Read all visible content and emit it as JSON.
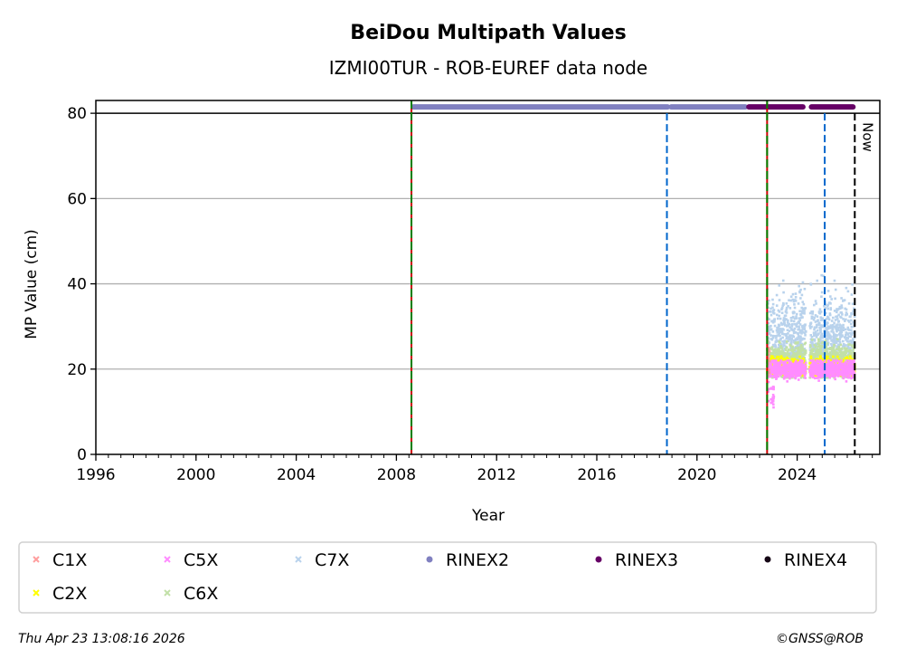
{
  "chart_data": {
    "type": "scatter",
    "title": "BeiDou Multipath Values",
    "subtitle": "IZMI00TUR - ROB-EUREF data node",
    "xlabel": "Year",
    "ylabel": "MP Value (cm)",
    "xlim": [
      1996.0,
      2027.3
    ],
    "ylim": [
      0,
      83
    ],
    "xticks": [
      1996,
      2000,
      2004,
      2008,
      2012,
      2016,
      2020,
      2024
    ],
    "yticks": [
      0,
      20,
      40,
      60,
      80
    ],
    "grid": "horizontal",
    "colors": {
      "C1X": "#ff9e9e",
      "C2X": "#ffff00",
      "C5X": "#ff8cff",
      "C6X": "#c2e0a8",
      "C7X": "#b8d2ec",
      "RINEX2": "#8080c0",
      "RINEX3": "#660066",
      "RINEX4": "#150515",
      "equipment_change": "#0066cc",
      "receiver_change_a": "#cc0000",
      "receiver_change_b": "#008000",
      "now": "#000000"
    },
    "vertical_lines": [
      {
        "type": "receiver",
        "x": 2008.6
      },
      {
        "type": "antenna",
        "x": 2018.8
      },
      {
        "type": "receiver",
        "x": 2022.8
      },
      {
        "type": "antenna",
        "x": 2025.1
      },
      {
        "type": "now",
        "x": 2026.3,
        "label": "Now"
      }
    ],
    "rinex_bars": [
      {
        "name": "RINEX2",
        "y": 81.5,
        "ranges": [
          [
            2008.6,
            2018.9
          ],
          [
            2018.9,
            2022.0
          ]
        ]
      },
      {
        "name": "RINEX3",
        "y": 81.5,
        "ranges": [
          [
            2022.0,
            2024.3
          ],
          [
            2024.5,
            2026.3
          ]
        ]
      }
    ],
    "series": [
      {
        "name": "C7X",
        "periods": [
          [
            2022.8,
            2024.35
          ],
          [
            2024.5,
            2026.3
          ]
        ],
        "center": 27,
        "spread": 5,
        "min": 20,
        "max": 42
      },
      {
        "name": "C6X",
        "periods": [
          [
            2022.8,
            2024.35
          ],
          [
            2024.5,
            2026.3
          ]
        ],
        "center": 22,
        "spread": 2,
        "min": 18,
        "max": 27
      },
      {
        "name": "C2X",
        "periods": [
          [
            2022.8,
            2024.35
          ],
          [
            2024.5,
            2026.3
          ]
        ],
        "center": 20.5,
        "spread": 1,
        "min": 18.5,
        "max": 23
      },
      {
        "name": "C5X",
        "periods": [
          [
            2022.8,
            2024.35
          ],
          [
            2024.5,
            2026.3
          ]
        ],
        "center": 20,
        "spread": 1,
        "min": 11,
        "max": 22
      },
      {
        "name": "C1X",
        "periods": [
          [
            2022.8,
            2022.9
          ]
        ],
        "center": 22,
        "spread": 2,
        "min": 16,
        "max": 26
      }
    ],
    "legend": {
      "placement": "bottom",
      "items": [
        {
          "label": "C1X",
          "marker": "x"
        },
        {
          "label": "C5X",
          "marker": "x"
        },
        {
          "label": "C7X",
          "marker": "x"
        },
        {
          "label": "RINEX2",
          "marker": "dot"
        },
        {
          "label": "RINEX3",
          "marker": "dot"
        },
        {
          "label": "RINEX4",
          "marker": "dot"
        },
        {
          "label": "C2X",
          "marker": "x"
        },
        {
          "label": "C6X",
          "marker": "x"
        }
      ]
    }
  },
  "footer": {
    "timestamp": "Thu Apr 23 13:08:16 2026",
    "copyright": "©GNSS@ROB"
  }
}
